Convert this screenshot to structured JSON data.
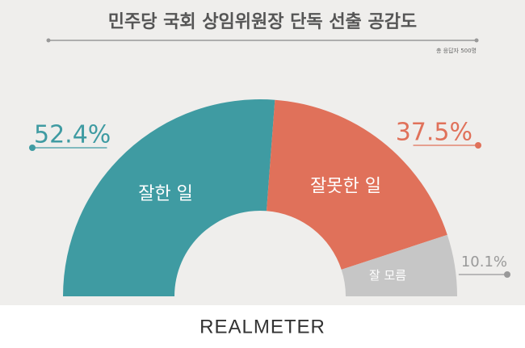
{
  "chart_data": {
    "type": "semi-donut",
    "title": "민주당 국회 상임위원장 단독 선출 공감도",
    "subtitle": "총 응답자 500명",
    "categories": [
      "잘한 일",
      "잘못한 일",
      "잘 모름"
    ],
    "values": [
      52.4,
      37.5,
      10.1
    ],
    "value_labels": [
      "52.4%",
      "37.5%",
      "10.1%"
    ],
    "colors": [
      "#3f9ba2",
      "#e0715a",
      "#c6c6c6"
    ],
    "brand": "REALMETER"
  }
}
